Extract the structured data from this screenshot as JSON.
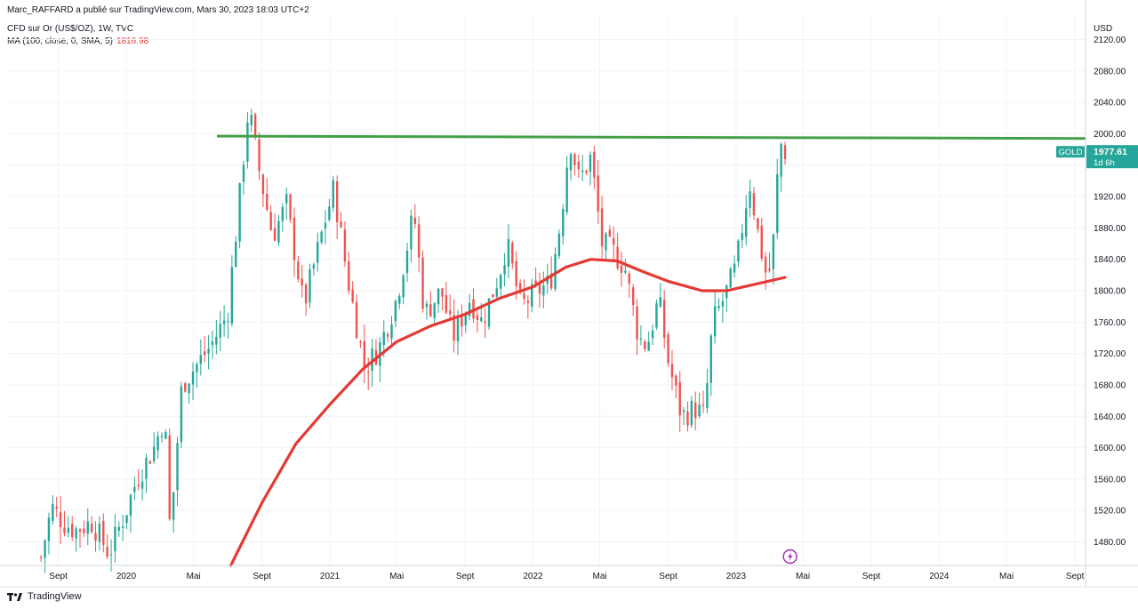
{
  "header": {
    "published": "Marc_RAFFARD a publié sur TradingView.com, Mars 30, 2023 18:03 UTC+2",
    "symbol_line": "CFD sur Or (US$/OZ), 1W, TVC",
    "ma_label": "MA (100, close, 0, SMA, 5)",
    "ma_value": "1816.98"
  },
  "footer": {
    "brand": "TradingView"
  },
  "colors": {
    "up": "#26a69a",
    "down": "#ef5350",
    "ma": "#e53935",
    "resistance": "#43a047",
    "price_tag": "#26a69a",
    "event_icon": "#9c27b0"
  },
  "icons": {
    "event": "lightning-icon",
    "brand": "tradingview-logo"
  },
  "chart_data": {
    "type": "candlestick",
    "y_axis": {
      "unit": "USD",
      "ticks": [
        1480,
        1520,
        1560,
        1600,
        1640,
        1680,
        1720,
        1760,
        1800,
        1840,
        1880,
        1920,
        1960,
        2000,
        2040,
        2080,
        2120
      ],
      "range": [
        1450,
        2150
      ]
    },
    "x_axis": {
      "range": [
        "2019-06-01",
        "2024-09-20"
      ],
      "ticks": [
        {
          "label": "Sept",
          "date": "2019-09-01"
        },
        {
          "label": "2020",
          "date": "2020-01-01"
        },
        {
          "label": "Mai",
          "date": "2020-05-01"
        },
        {
          "label": "Sept",
          "date": "2020-09-01"
        },
        {
          "label": "2021",
          "date": "2021-01-01"
        },
        {
          "label": "Mai",
          "date": "2021-05-01"
        },
        {
          "label": "Sept",
          "date": "2021-09-01"
        },
        {
          "label": "2022",
          "date": "2022-01-01"
        },
        {
          "label": "Mai",
          "date": "2022-05-01"
        },
        {
          "label": "Sept",
          "date": "2022-09-01"
        },
        {
          "label": "2023",
          "date": "2023-01-01"
        },
        {
          "label": "Mai",
          "date": "2023-05-01"
        },
        {
          "label": "Sept",
          "date": "2023-09-01"
        },
        {
          "label": "2024",
          "date": "2024-01-01"
        },
        {
          "label": "Mai",
          "date": "2024-05-01"
        },
        {
          "label": "Sept",
          "date": "2024-09-01"
        }
      ]
    },
    "close_anchors": [
      [
        "2019-08-01",
        1460
      ],
      [
        "2019-08-20",
        1525
      ],
      [
        "2019-09-10",
        1505
      ],
      [
        "2019-10-01",
        1495
      ],
      [
        "2019-11-01",
        1505
      ],
      [
        "2019-12-01",
        1465
      ],
      [
        "2020-01-01",
        1520
      ],
      [
        "2020-01-20",
        1560
      ],
      [
        "2020-02-20",
        1600
      ],
      [
        "2020-03-10",
        1640
      ],
      [
        "2020-03-20",
        1490
      ],
      [
        "2020-04-10",
        1680
      ],
      [
        "2020-05-01",
        1700
      ],
      [
        "2020-06-01",
        1730
      ],
      [
        "2020-07-01",
        1770
      ],
      [
        "2020-07-20",
        1900
      ],
      [
        "2020-08-08",
        2035
      ],
      [
        "2020-08-25",
        1960
      ],
      [
        "2020-09-20",
        1870
      ],
      [
        "2020-10-15",
        1910
      ],
      [
        "2020-11-15",
        1780
      ],
      [
        "2020-12-20",
        1880
      ],
      [
        "2021-01-08",
        1930
      ],
      [
        "2021-02-01",
        1820
      ],
      [
        "2021-03-05",
        1700
      ],
      [
        "2021-04-01",
        1730
      ],
      [
        "2021-05-01",
        1790
      ],
      [
        "2021-06-01",
        1900
      ],
      [
        "2021-06-20",
        1770
      ],
      [
        "2021-07-20",
        1800
      ],
      [
        "2021-08-10",
        1740
      ],
      [
        "2021-09-10",
        1790
      ],
      [
        "2021-10-01",
        1760
      ],
      [
        "2021-11-01",
        1820
      ],
      [
        "2021-11-15",
        1860
      ],
      [
        "2021-12-10",
        1780
      ],
      [
        "2022-01-10",
        1800
      ],
      [
        "2022-02-01",
        1810
      ],
      [
        "2022-02-20",
        1890
      ],
      [
        "2022-03-08",
        1995
      ],
      [
        "2022-03-25",
        1940
      ],
      [
        "2022-04-15",
        1970
      ],
      [
        "2022-05-05",
        1860
      ],
      [
        "2022-05-25",
        1850
      ],
      [
        "2022-06-15",
        1830
      ],
      [
        "2022-07-10",
        1740
      ],
      [
        "2022-07-25",
        1730
      ],
      [
        "2022-08-15",
        1790
      ],
      [
        "2022-09-01",
        1710
      ],
      [
        "2022-09-25",
        1640
      ],
      [
        "2022-10-20",
        1650
      ],
      [
        "2022-11-05",
        1640
      ],
      [
        "2022-11-20",
        1760
      ],
      [
        "2022-12-10",
        1790
      ],
      [
        "2023-01-01",
        1830
      ],
      [
        "2023-01-25",
        1940
      ],
      [
        "2023-02-10",
        1870
      ],
      [
        "2023-02-27",
        1810
      ],
      [
        "2023-03-10",
        1870
      ],
      [
        "2023-03-20",
        1990
      ],
      [
        "2023-03-30",
        1977
      ]
    ],
    "ma_points": [
      [
        "2020-07-07",
        1450
      ],
      [
        "2020-09-01",
        1530
      ],
      [
        "2020-11-01",
        1605
      ],
      [
        "2021-01-01",
        1655
      ],
      [
        "2021-03-01",
        1700
      ],
      [
        "2021-05-01",
        1735
      ],
      [
        "2021-07-01",
        1755
      ],
      [
        "2021-09-01",
        1770
      ],
      [
        "2021-11-01",
        1790
      ],
      [
        "2022-01-01",
        1805
      ],
      [
        "2022-03-01",
        1830
      ],
      [
        "2022-04-15",
        1840
      ],
      [
        "2022-06-01",
        1838
      ],
      [
        "2022-07-15",
        1825
      ],
      [
        "2022-09-01",
        1812
      ],
      [
        "2022-11-01",
        1800
      ],
      [
        "2022-12-15",
        1800
      ],
      [
        "2023-01-15",
        1805
      ],
      [
        "2023-02-15",
        1810
      ],
      [
        "2023-03-30",
        1817
      ]
    ],
    "resistance_line": {
      "from": [
        "2020-06-12",
        1997
      ],
      "to": [
        "2024-09-20",
        1994
      ]
    },
    "last_price": {
      "symbol": "GOLD",
      "value": "1977.61",
      "countdown": "1d 6h"
    },
    "event_marker_date": "2023-04-08"
  }
}
